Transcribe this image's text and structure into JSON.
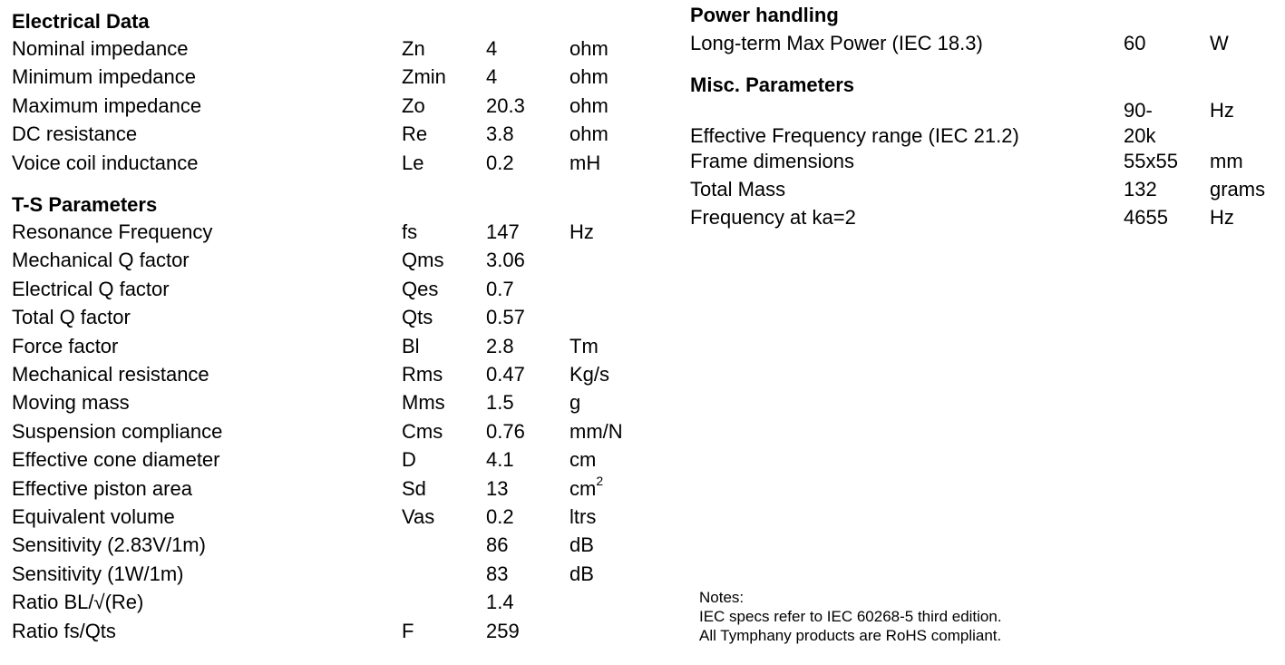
{
  "electrical": {
    "heading": "Electrical Data",
    "rows": [
      {
        "label": "Nominal impedance",
        "symbol": "Zn",
        "value": "4",
        "unit": "ohm"
      },
      {
        "label": "Minimum impedance",
        "symbol": "Zmin",
        "value": "4",
        "unit": "ohm"
      },
      {
        "label": "Maximum impedance",
        "symbol": "Zo",
        "value": "20.3",
        "unit": "ohm"
      },
      {
        "label": "DC resistance",
        "symbol": "Re",
        "value": "3.8",
        "unit": "ohm"
      },
      {
        "label": "Voice coil inductance",
        "symbol": "Le",
        "value": "0.2",
        "unit": "mH"
      }
    ]
  },
  "ts": {
    "heading": "T-S Parameters",
    "rows": [
      {
        "label": "Resonance Frequency",
        "symbol": "fs",
        "value": "147",
        "unit": "Hz"
      },
      {
        "label": "Mechanical Q factor",
        "symbol": "Qms",
        "value": "3.06",
        "unit": ""
      },
      {
        "label": "Electrical Q factor",
        "symbol": "Qes",
        "value": "0.7",
        "unit": ""
      },
      {
        "label": "Total Q factor",
        "symbol": "Qts",
        "value": "0.57",
        "unit": ""
      },
      {
        "label": "Force factor",
        "symbol": "Bl",
        "value": "2.8",
        "unit": "Tm"
      },
      {
        "label": "Mechanical resistance",
        "symbol": "Rms",
        "value": "0.47",
        "unit": "Kg/s"
      },
      {
        "label": "Moving mass",
        "symbol": "Mms",
        "value": "1.5",
        "unit": "g"
      },
      {
        "label": "Suspension compliance",
        "symbol": "Cms",
        "value": "0.76",
        "unit": "mm/N"
      },
      {
        "label": "Effective cone diameter",
        "symbol": "D",
        "value": "4.1",
        "unit": "cm"
      },
      {
        "label": "Effective piston area",
        "symbol": "Sd",
        "value": "13",
        "unit": "cm",
        "unit_sup": "2"
      },
      {
        "label": "Equivalent volume",
        "symbol": "Vas",
        "value": "0.2",
        "unit": "ltrs"
      },
      {
        "label": "Sensitivity (2.83V/1m)",
        "symbol": "",
        "value": "86",
        "unit": "dB"
      },
      {
        "label": "Sensitivity (1W/1m)",
        "symbol": "",
        "value": "83",
        "unit": "dB"
      },
      {
        "label": "Ratio BL/√(Re)",
        "symbol": "",
        "value": "1.4",
        "unit": ""
      },
      {
        "label": "Ratio fs/Qts",
        "symbol": "F",
        "value": "259",
        "unit": ""
      }
    ]
  },
  "power": {
    "heading": "Power handling",
    "rows": [
      {
        "label": "Long-term Max Power (IEC 18.3)",
        "value": "60",
        "unit": "W"
      }
    ]
  },
  "misc": {
    "heading": "Misc. Parameters",
    "freq_range": {
      "value_top": "90-",
      "unit": "Hz",
      "label": "Effective Frequency range (IEC 21.2)",
      "value_bottom": "20k"
    },
    "rows": [
      {
        "label": "Frame dimensions",
        "value": "55x55",
        "unit": "mm"
      },
      {
        "label": "Total Mass",
        "value": "132",
        "unit": "grams"
      },
      {
        "label": "Frequency at ka=2",
        "value": "4655",
        "unit": "Hz"
      }
    ]
  },
  "notes": {
    "title": "Notes:",
    "lines": [
      "IEC specs refer to IEC 60268-5 third edition.",
      "All Tymphany products are RoHS compliant."
    ]
  }
}
